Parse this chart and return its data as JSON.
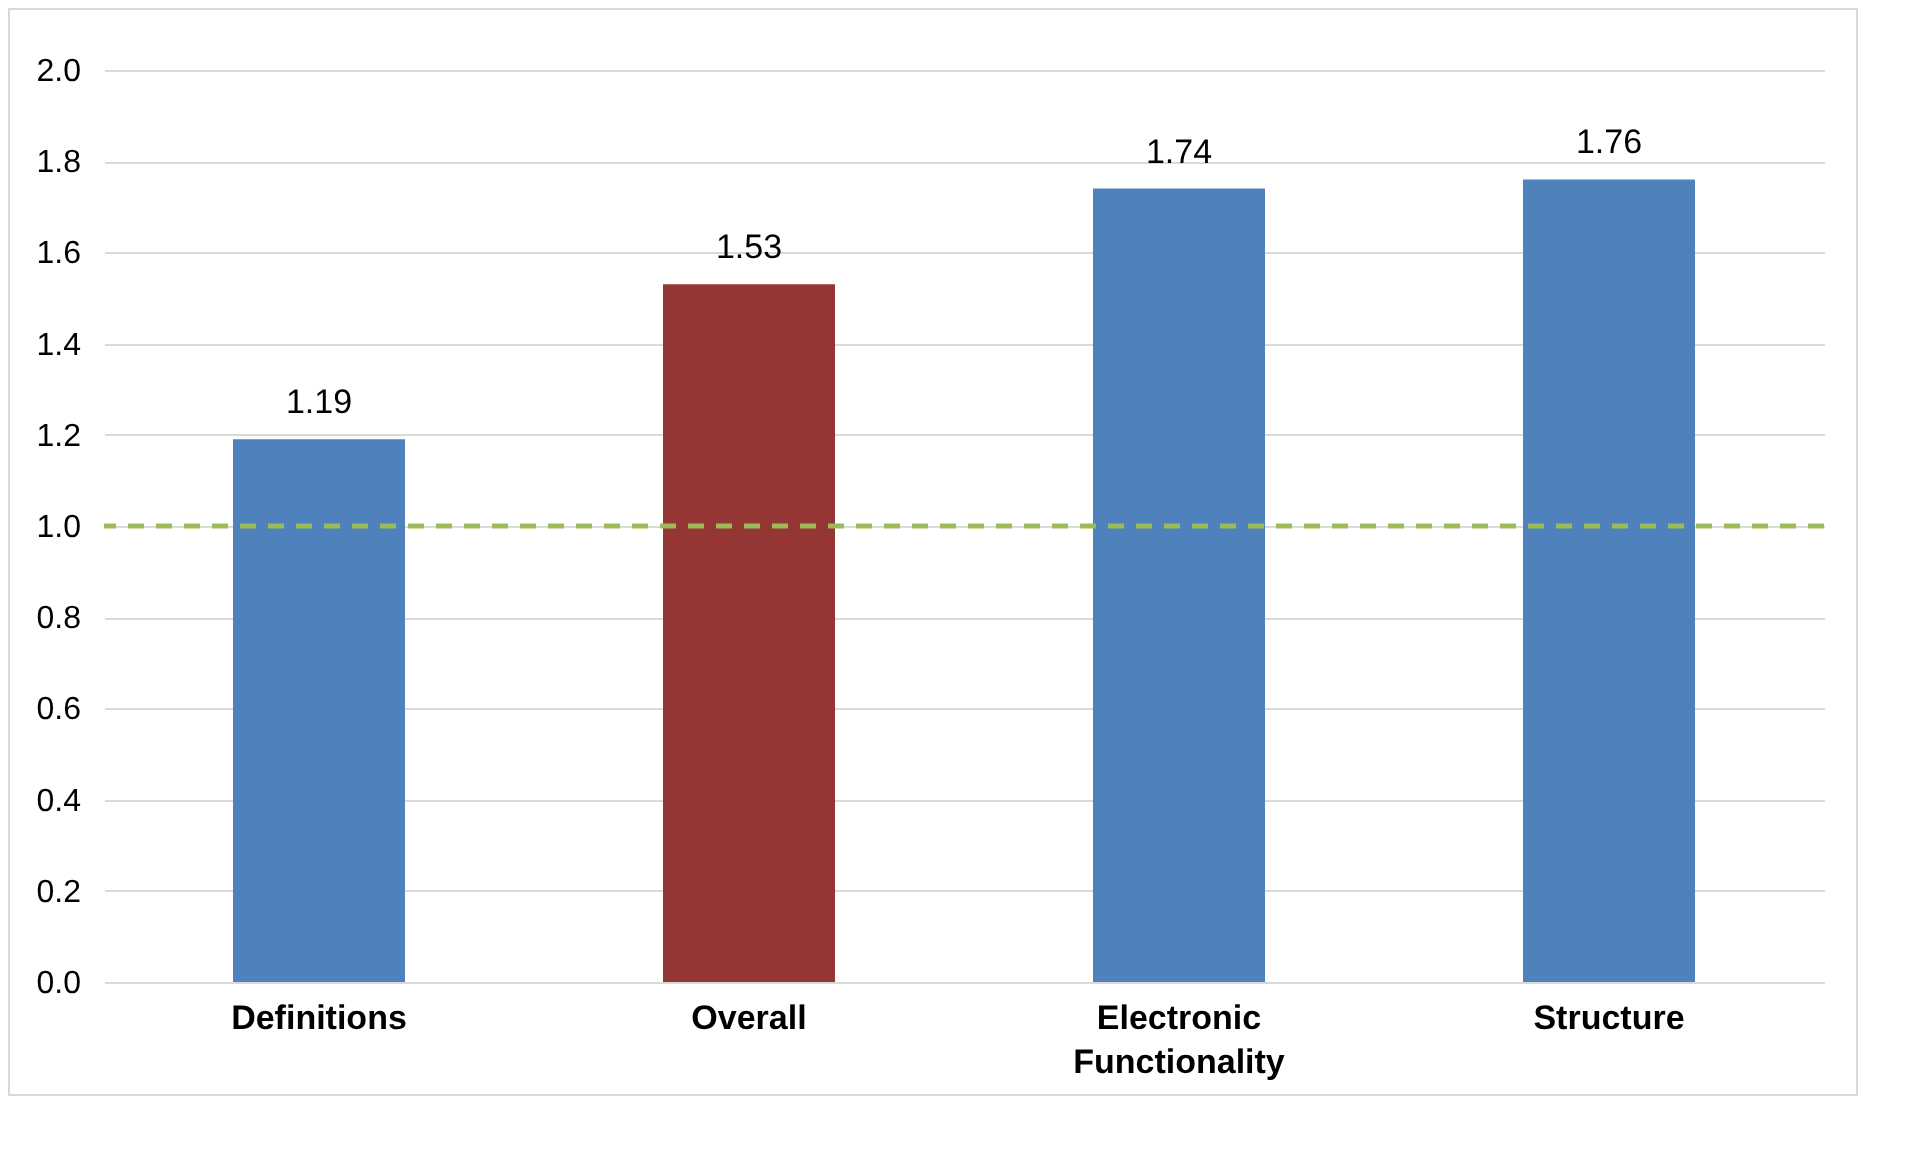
{
  "chart_data": {
    "type": "bar",
    "categories": [
      "Definitions",
      "Overall",
      "Electronic Functionality",
      "Structure"
    ],
    "values": [
      1.19,
      1.53,
      1.74,
      1.76
    ],
    "colors": [
      "#4f81bd",
      "#943634",
      "#4f81bd",
      "#4f81bd"
    ],
    "ylim": [
      0,
      2
    ],
    "yticks": [
      {
        "value": 0,
        "label": "0.0"
      },
      {
        "value": 0.2,
        "label": "0.2"
      },
      {
        "value": 0.4,
        "label": "0.4"
      },
      {
        "value": 0.6,
        "label": "0.6"
      },
      {
        "value": 0.8,
        "label": "0.8"
      },
      {
        "value": 1,
        "label": "1.0"
      },
      {
        "value": 1.2,
        "label": "1.2"
      },
      {
        "value": 1.4,
        "label": "1.4"
      },
      {
        "value": 1.6,
        "label": "1.6"
      },
      {
        "value": 1.8,
        "label": "1.8"
      },
      {
        "value": 2,
        "label": "2.0"
      }
    ],
    "grid": "y",
    "data_labels": true,
    "ref_lines": [
      {
        "axis": "y",
        "value": 1,
        "color": "#9bbb59",
        "line_style": "dashed"
      }
    ]
  }
}
